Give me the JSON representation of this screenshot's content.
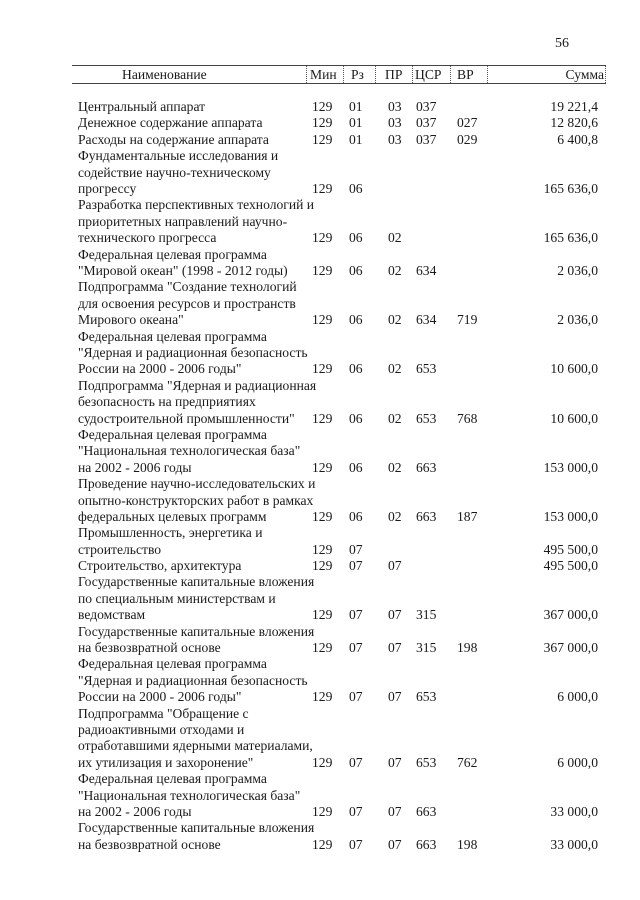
{
  "page_number": "56",
  "header": {
    "name": "Наименование",
    "min": "Мин",
    "rz": "Рз",
    "pr": "ПР",
    "csr": "ЦСР",
    "vr": "ВР",
    "sum": "Сумма"
  },
  "rows": [
    {
      "name": [
        "Центральный аппарат"
      ],
      "min": "129",
      "rz": "01",
      "pr": "03",
      "csr": "037",
      "vr": "",
      "sum": "19 221,4"
    },
    {
      "name": [
        "Денежное содержание аппарата"
      ],
      "min": "129",
      "rz": "01",
      "pr": "03",
      "csr": "037",
      "vr": "027",
      "sum": "12 820,6"
    },
    {
      "name": [
        "Расходы на содержание аппарата"
      ],
      "min": "129",
      "rz": "01",
      "pr": "03",
      "csr": "037",
      "vr": "029",
      "sum": "6 400,8"
    },
    {
      "name": [
        "Фундаментальные исследования и",
        "содействие научно-техническому",
        "прогрессу"
      ],
      "min": "129",
      "rz": "06",
      "pr": "",
      "csr": "",
      "vr": "",
      "sum": "165 636,0"
    },
    {
      "name": [
        "Разработка перспективных технологий и",
        "приоритетных направлений научно-",
        "технического прогресса"
      ],
      "min": "129",
      "rz": "06",
      "pr": "02",
      "csr": "",
      "vr": "",
      "sum": "165 636,0"
    },
    {
      "name": [
        "Федеральная целевая программа",
        "\"Мировой океан\" (1998 - 2012 годы)"
      ],
      "min": "129",
      "rz": "06",
      "pr": "02",
      "csr": "634",
      "vr": "",
      "sum": "2 036,0"
    },
    {
      "name": [
        "Подпрограмма \"Создание технологий",
        "для освоения ресурсов и пространств",
        "Мирового океана\""
      ],
      "min": "129",
      "rz": "06",
      "pr": "02",
      "csr": "634",
      "vr": "719",
      "sum": "2 036,0"
    },
    {
      "name": [
        "Федеральная целевая программа",
        "\"Ядерная и радиационная безопасность",
        "России на 2000 - 2006 годы\""
      ],
      "min": "129",
      "rz": "06",
      "pr": "02",
      "csr": "653",
      "vr": "",
      "sum": "10 600,0"
    },
    {
      "name": [
        "Подпрограмма \"Ядерная и радиационная",
        "безопасность на предприятиях",
        "судостроительной промышленности\""
      ],
      "min": "129",
      "rz": "06",
      "pr": "02",
      "csr": "653",
      "vr": "768",
      "sum": "10 600,0"
    },
    {
      "name": [
        "Федеральная целевая программа",
        "\"Национальная технологическая база\"",
        "на 2002 - 2006 годы"
      ],
      "min": "129",
      "rz": "06",
      "pr": "02",
      "csr": "663",
      "vr": "",
      "sum": "153 000,0"
    },
    {
      "name": [
        "Проведение научно-исследовательских и",
        "опытно-конструкторских работ в рамках",
        "федеральных целевых программ"
      ],
      "min": "129",
      "rz": "06",
      "pr": "02",
      "csr": "663",
      "vr": "187",
      "sum": "153 000,0"
    },
    {
      "name": [
        "Промышленность, энергетика и",
        "строительство"
      ],
      "min": "129",
      "rz": "07",
      "pr": "",
      "csr": "",
      "vr": "",
      "sum": "495 500,0"
    },
    {
      "name": [
        "Строительство, архитектура"
      ],
      "min": "129",
      "rz": "07",
      "pr": "07",
      "csr": "",
      "vr": "",
      "sum": "495 500,0"
    },
    {
      "name": [
        "Государственные капитальные вложения",
        "по специальным министерствам и",
        "ведомствам"
      ],
      "min": "129",
      "rz": "07",
      "pr": "07",
      "csr": "315",
      "vr": "",
      "sum": "367 000,0"
    },
    {
      "name": [
        "Государственные капитальные вложения",
        "на безвозвратной основе"
      ],
      "min": "129",
      "rz": "07",
      "pr": "07",
      "csr": "315",
      "vr": "198",
      "sum": "367 000,0"
    },
    {
      "name": [
        "Федеральная целевая программа",
        "\"Ядерная и радиационная безопасность",
        "России на 2000 - 2006 годы\""
      ],
      "min": "129",
      "rz": "07",
      "pr": "07",
      "csr": "653",
      "vr": "",
      "sum": "6 000,0"
    },
    {
      "name": [
        "Подпрограмма \"Обращение с",
        "радиоактивными отходами и",
        "отработавшими ядерными материалами,",
        "их утилизация и захоронение\""
      ],
      "min": "129",
      "rz": "07",
      "pr": "07",
      "csr": "653",
      "vr": "762",
      "sum": "6 000,0"
    },
    {
      "name": [
        "Федеральная целевая программа",
        "\"Национальная технологическая база\"",
        "на 2002 - 2006 годы"
      ],
      "min": "129",
      "rz": "07",
      "pr": "07",
      "csr": "663",
      "vr": "",
      "sum": "33 000,0"
    },
    {
      "name": [
        "Государственные капитальные вложения",
        "на безвозвратной основе"
      ],
      "min": "129",
      "rz": "07",
      "pr": "07",
      "csr": "663",
      "vr": "198",
      "sum": "33 000,0"
    }
  ]
}
